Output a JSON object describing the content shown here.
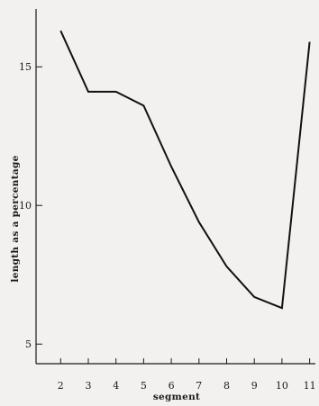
{
  "chart_data": {
    "type": "line",
    "xlabel": "segment",
    "ylabel": "length as a percentage",
    "xlim": [
      1,
      11
    ],
    "ylim": [
      4,
      17.5
    ],
    "x_ticks": [
      2,
      3,
      4,
      5,
      6,
      7,
      8,
      9,
      10,
      11
    ],
    "y_ticks": [
      5,
      10,
      15
    ],
    "grid": false,
    "series": [
      {
        "x": [
          2,
          3,
          4,
          5,
          6,
          7,
          8,
          9,
          10,
          11
        ],
        "y": [
          16.3,
          14.1,
          14.1,
          13.6,
          11.4,
          9.4,
          7.8,
          6.7,
          6.3,
          15.9
        ]
      }
    ],
    "colors": {
      "line": "#111111",
      "axis": "#1a1a1a",
      "background": "#f2f1ef"
    }
  }
}
